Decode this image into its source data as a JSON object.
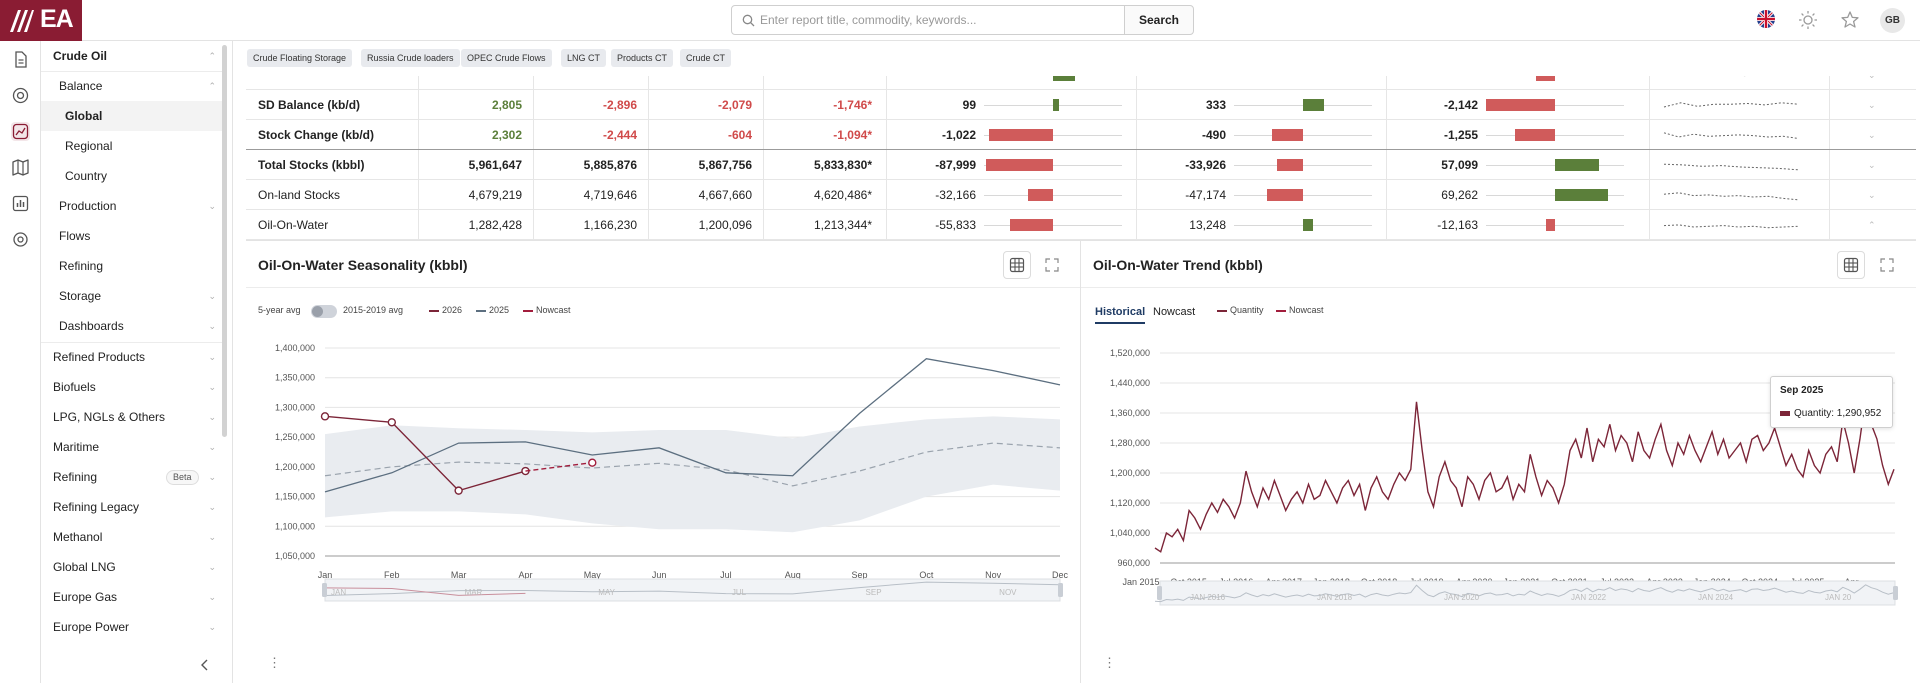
{
  "app": {
    "logo_text": "EA"
  },
  "search": {
    "placeholder": "Enter report title, commodity, keywords...",
    "button_label": "Search"
  },
  "user": {
    "initials": "GB"
  },
  "colors": {
    "brand": "#8a1c33",
    "positive_bar": "#5b7f3a",
    "negative_bar": "#d05b5b",
    "series_2026": "#7c2538",
    "series_2025": "#5c6f80",
    "nowcast": "#a21d3c",
    "band": "#e9ecf0"
  },
  "rail_icons": [
    "document-icon",
    "globe-icon",
    "chart-icon",
    "map-icon",
    "dashboard-icon",
    "settings-icon"
  ],
  "sidebar": {
    "items": [
      {
        "label": "Crude Oil"
      },
      {
        "label": "Balance"
      },
      {
        "label": "Global"
      },
      {
        "label": "Regional"
      },
      {
        "label": "Country"
      },
      {
        "label": "Production"
      },
      {
        "label": "Flows"
      },
      {
        "label": "Refining"
      },
      {
        "label": "Storage"
      },
      {
        "label": "Dashboards"
      },
      {
        "label": "Refined Products"
      },
      {
        "label": "Biofuels"
      },
      {
        "label": "LPG, NGLs & Others"
      },
      {
        "label": "Maritime"
      },
      {
        "label": "Refining",
        "badge": "Beta"
      },
      {
        "label": "Refining Legacy"
      },
      {
        "label": "Methanol"
      },
      {
        "label": "Global LNG"
      },
      {
        "label": "Europe Gas"
      },
      {
        "label": "Europe Power"
      }
    ]
  },
  "tags": [
    "Crude Floating Storage",
    "Russia Crude loaders",
    "OPEC Crude Flows",
    "LNG CT",
    "Products CT",
    "Crude CT"
  ],
  "table": {
    "rows": [
      {
        "label": "",
        "values": [
          "",
          "",
          "",
          ""
        ],
        "deltas": [
          {
            "text": "",
            "v": 350
          },
          {
            "text": "",
            "v": 0
          },
          {
            "text": "",
            "v": -600
          }
        ]
      },
      {
        "label": "SD Balance (kb/d)",
        "values": [
          "2,805",
          "-2,896",
          "-2,079",
          "-1,746*"
        ],
        "deltas": [
          {
            "text": "99",
            "v": 99
          },
          {
            "text": "333",
            "v": 333
          },
          {
            "text": "-2,142",
            "v": -2142
          }
        ]
      },
      {
        "label": "Stock Change (kb/d)",
        "values": [
          "2,302",
          "-2,444",
          "-604",
          "-1,094*"
        ],
        "deltas": [
          {
            "text": "-1,022",
            "v": -1022
          },
          {
            "text": "-490",
            "v": -490
          },
          {
            "text": "-1,255",
            "v": -1255
          }
        ]
      },
      {
        "label": "Total Stocks (kbbl)",
        "values": [
          "5,961,647",
          "5,885,876",
          "5,867,756",
          "5,833,830*"
        ],
        "deltas": [
          {
            "text": "-87,999",
            "v": -87999
          },
          {
            "text": "-33,926",
            "v": -33926
          },
          {
            "text": "57,099",
            "v": 57099
          }
        ]
      },
      {
        "label": "On-land Stocks",
        "values": [
          "4,679,219",
          "4,719,646",
          "4,667,660",
          "4,620,486*"
        ],
        "deltas": [
          {
            "text": "-32,166",
            "v": -32166
          },
          {
            "text": "-47,174",
            "v": -47174
          },
          {
            "text": "69,262",
            "v": 69262
          }
        ]
      },
      {
        "label": "Oil-On-Water",
        "values": [
          "1,282,428",
          "1,166,230",
          "1,200,096",
          "1,213,344*"
        ],
        "deltas": [
          {
            "text": "-55,833",
            "v": -55833
          },
          {
            "text": "13,248",
            "v": 13248
          },
          {
            "text": "-12,163",
            "v": -12163
          }
        ]
      }
    ]
  },
  "seasonality": {
    "title": "Oil-On-Water Seasonality (kbbl)",
    "toggle_left": "5-year avg",
    "toggle_right": "2015-2019 avg",
    "legend": [
      "2026",
      "2025",
      "Nowcast"
    ]
  },
  "trend": {
    "title": "Oil-On-Water Trend (kbbl)",
    "tabs": [
      "Historical",
      "Nowcast"
    ],
    "legend": [
      "Quantity",
      "Nowcast"
    ],
    "tooltip": {
      "title": "Sep 2025",
      "text": "Quantity: 1,290,952"
    }
  },
  "chart_data": [
    {
      "type": "line",
      "title": "Oil-On-Water Seasonality (kbbl)",
      "categories": [
        "Jan",
        "Feb",
        "Mar",
        "Apr",
        "May",
        "Jun",
        "Jul",
        "Aug",
        "Sep",
        "Oct",
        "Nov",
        "Dec"
      ],
      "ylim": [
        1050000,
        1400000
      ],
      "yticks": [
        "1,400,000",
        "1,350,000",
        "1,300,000",
        "1,250,000",
        "1,200,000",
        "1,150,000",
        "1,100,000",
        "1,050,000"
      ],
      "navigator_labels": [
        "JAN",
        "MAR",
        "MAY",
        "JUL",
        "SEP",
        "NOV"
      ],
      "series": [
        {
          "name": "2026",
          "values": [
            1285000,
            1275000,
            1160000,
            1193000,
            null,
            null,
            null,
            null,
            null,
            null,
            null,
            null
          ]
        },
        {
          "name": "2025",
          "values": [
            1158000,
            1190000,
            1240000,
            1242000,
            1220000,
            1232000,
            1190000,
            1185000,
            1290000,
            1382000,
            1362000,
            1338000
          ]
        },
        {
          "name": "Nowcast",
          "values": [
            null,
            null,
            null,
            1193000,
            1207000,
            null,
            null,
            null,
            null,
            null,
            null,
            null
          ]
        },
        {
          "name": "5-year avg",
          "values": [
            1185000,
            1200000,
            1208000,
            1205000,
            1198000,
            1206000,
            1195000,
            1168000,
            1193000,
            1225000,
            1240000,
            1232000
          ]
        },
        {
          "name": "range-high",
          "values": [
            1255000,
            1270000,
            1265000,
            1262000,
            1258000,
            1262000,
            1262000,
            1248000,
            1268000,
            1280000,
            1285000,
            1280000
          ]
        },
        {
          "name": "range-low",
          "values": [
            1115000,
            1125000,
            1125000,
            1120000,
            1105000,
            1095000,
            1095000,
            1090000,
            1110000,
            1150000,
            1170000,
            1160000
          ]
        }
      ]
    },
    {
      "type": "line",
      "title": "Oil-On-Water Trend (kbbl)",
      "ylim": [
        960000,
        1520000
      ],
      "yticks": [
        "1,520,000",
        "1,440,000",
        "1,360,000",
        "1,280,000",
        "1,200,000",
        "1,120,000",
        "1,040,000",
        "960,000"
      ],
      "x_labels": [
        "Jan 2015",
        "Oct 2015",
        "Jul 2016",
        "Apr 2017",
        "Jan 2018",
        "Oct 2018",
        "Jul 2019",
        "Apr 2020",
        "Jan 2021",
        "Oct 2021",
        "Jul 2022",
        "Apr 2023",
        "Jan 2024",
        "Oct 2024",
        "Jul 2025",
        "Apr..."
      ],
      "navigator_labels": [
        "JAN 2016",
        "JAN 2018",
        "JAN 2020",
        "JAN 2022",
        "JAN 2024",
        "JAN 20"
      ],
      "series": [
        {
          "name": "Quantity",
          "values": [
            1000000,
            990000,
            1040000,
            1030000,
            1050000,
            1020000,
            1100000,
            1080000,
            1050000,
            1090000,
            1120000,
            1095000,
            1130000,
            1110000,
            1080000,
            1120000,
            1205000,
            1150000,
            1110000,
            1160000,
            1130000,
            1180000,
            1140000,
            1100000,
            1130000,
            1150000,
            1120000,
            1170000,
            1130000,
            1140000,
            1180000,
            1150000,
            1120000,
            1160000,
            1180000,
            1140000,
            1170000,
            1100000,
            1160000,
            1190000,
            1150000,
            1130000,
            1170000,
            1200000,
            1180000,
            1210000,
            1390000,
            1260000,
            1150000,
            1110000,
            1190000,
            1230000,
            1180000,
            1160000,
            1110000,
            1190000,
            1170000,
            1130000,
            1180000,
            1200000,
            1150000,
            1160000,
            1190000,
            1130000,
            1170000,
            1150000,
            1250000,
            1190000,
            1140000,
            1180000,
            1160000,
            1120000,
            1170000,
            1260000,
            1290000,
            1240000,
            1320000,
            1230000,
            1290000,
            1270000,
            1330000,
            1260000,
            1300000,
            1280000,
            1230000,
            1310000,
            1260000,
            1240000,
            1290000,
            1330000,
            1260000,
            1220000,
            1280000,
            1250000,
            1300000,
            1260000,
            1230000,
            1270000,
            1310000,
            1250000,
            1290000,
            1240000,
            1260000,
            1280000,
            1230000,
            1290000,
            1300000,
            1260000,
            1280000,
            1320000,
            1270000,
            1220000,
            1250000,
            1210000,
            1190000,
            1260000,
            1220000,
            1200000,
            1250000,
            1270000,
            1230000,
            1340000,
            1280000,
            1200000,
            1290000,
            1400000,
            1330000,
            1291000,
            1220000,
            1170000,
            1210000
          ]
        }
      ]
    }
  ]
}
